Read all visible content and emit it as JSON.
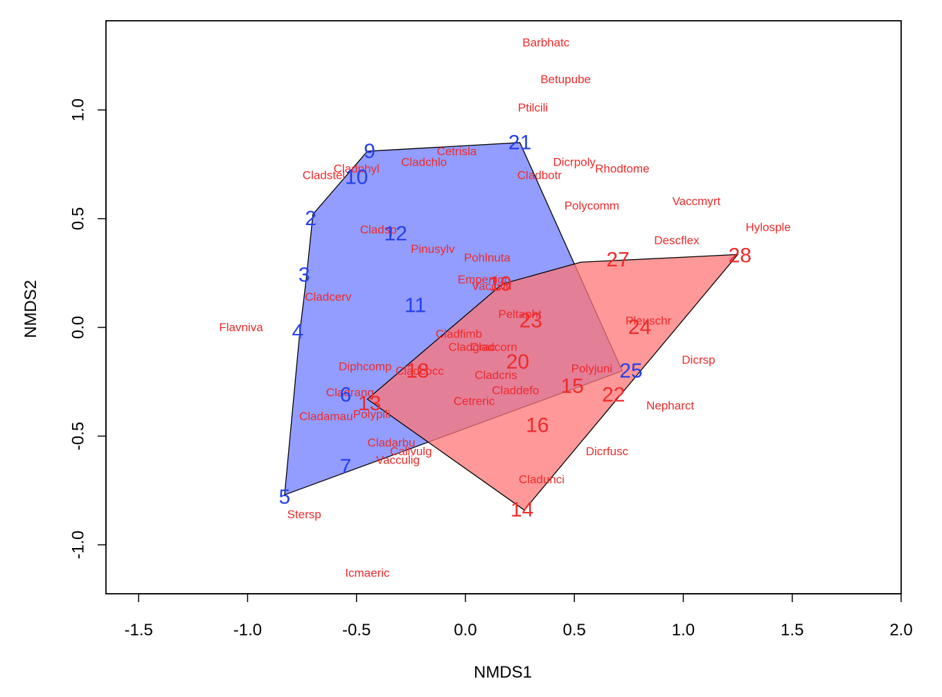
{
  "chart_data": {
    "type": "scatter",
    "title": "",
    "xlabel": "NMDS1",
    "ylabel": "NMDS2",
    "xlim": [
      -1.65,
      2.0
    ],
    "ylim": [
      -1.225,
      1.41
    ],
    "xticks": [
      -1.5,
      -1.0,
      -0.5,
      0.0,
      0.5,
      1.0,
      1.5,
      2.0
    ],
    "yticks": [
      -1.0,
      -0.5,
      0.0,
      0.5,
      1.0
    ],
    "xtick_labels": [
      "-1.5",
      "-1.0",
      "-0.5",
      "0.0",
      "0.5",
      "1.0",
      "1.5",
      "2.0"
    ],
    "ytick_labels": [
      "-1.0",
      "-0.5",
      "0.0",
      "0.5",
      "1.0"
    ],
    "grid": false,
    "colors": {
      "blue_text": "#2540e8",
      "red_text": "#ee2a2a",
      "blue_fill": "#6e7cff",
      "red_fill": "#ff7575",
      "hull_stroke": "#000000"
    },
    "hulls": [
      {
        "group": "blue",
        "points": [
          [
            -0.45,
            0.81
          ],
          [
            0.25,
            0.85
          ],
          [
            0.72,
            -0.2
          ],
          [
            -0.83,
            -0.77
          ],
          [
            -0.76,
            -0.02
          ],
          [
            -0.73,
            0.23
          ],
          [
            -0.7,
            0.52
          ]
        ]
      },
      {
        "group": "red",
        "points": [
          [
            -0.45,
            -0.33
          ],
          [
            0.17,
            0.2
          ],
          [
            0.53,
            0.3
          ],
          [
            1.25,
            0.335
          ],
          [
            0.27,
            -0.84
          ]
        ]
      }
    ],
    "sites": [
      {
        "label": "9",
        "group": "blue",
        "x": -0.44,
        "y": 0.81
      },
      {
        "label": "21",
        "group": "blue",
        "x": 0.25,
        "y": 0.85
      },
      {
        "label": "10",
        "group": "blue",
        "x": -0.5,
        "y": 0.69
      },
      {
        "label": "2",
        "group": "blue",
        "x": -0.71,
        "y": 0.5
      },
      {
        "label": "12",
        "group": "blue",
        "x": -0.32,
        "y": 0.43
      },
      {
        "label": "3",
        "group": "blue",
        "x": -0.74,
        "y": 0.24
      },
      {
        "label": "11",
        "group": "blue",
        "x": -0.23,
        "y": 0.1
      },
      {
        "label": "4",
        "group": "blue",
        "x": -0.77,
        "y": -0.02
      },
      {
        "label": "6",
        "group": "blue",
        "x": -0.55,
        "y": -0.31
      },
      {
        "label": "7",
        "group": "blue",
        "x": -0.55,
        "y": -0.64
      },
      {
        "label": "5",
        "group": "blue",
        "x": -0.83,
        "y": -0.78
      },
      {
        "label": "25",
        "group": "blue",
        "x": 0.76,
        "y": -0.2
      },
      {
        "label": "27",
        "group": "red",
        "x": 0.7,
        "y": 0.31
      },
      {
        "label": "28",
        "group": "red",
        "x": 1.26,
        "y": 0.33
      },
      {
        "label": "19",
        "group": "red",
        "x": 0.16,
        "y": 0.2
      },
      {
        "label": "23",
        "group": "red",
        "x": 0.3,
        "y": 0.03
      },
      {
        "label": "24",
        "group": "red",
        "x": 0.8,
        "y": 0.0
      },
      {
        "label": "20",
        "group": "red",
        "x": 0.24,
        "y": -0.16
      },
      {
        "label": "18",
        "group": "red",
        "x": -0.22,
        "y": -0.2
      },
      {
        "label": "15",
        "group": "red",
        "x": 0.49,
        "y": -0.27
      },
      {
        "label": "22",
        "group": "red",
        "x": 0.68,
        "y": -0.31
      },
      {
        "label": "13",
        "group": "red",
        "x": -0.44,
        "y": -0.35
      },
      {
        "label": "16",
        "group": "red",
        "x": 0.33,
        "y": -0.45
      },
      {
        "label": "14",
        "group": "red",
        "x": 0.26,
        "y": -0.84
      }
    ],
    "species": [
      {
        "label": "Barbhatc",
        "x": 0.37,
        "y": 1.31
      },
      {
        "label": "Betupube",
        "x": 0.46,
        "y": 1.14
      },
      {
        "label": "Ptilcili",
        "x": 0.31,
        "y": 1.01
      },
      {
        "label": "Cetrisla",
        "x": -0.04,
        "y": 0.81
      },
      {
        "label": "Cladchlo",
        "x": -0.19,
        "y": 0.76
      },
      {
        "label": "Cladphyl",
        "x": -0.5,
        "y": 0.73
      },
      {
        "label": "Cladstel",
        "x": -0.65,
        "y": 0.7
      },
      {
        "label": "Dicrpoly",
        "x": 0.5,
        "y": 0.76
      },
      {
        "label": "Rhodtome",
        "x": 0.72,
        "y": 0.73
      },
      {
        "label": "Cladbotr",
        "x": 0.34,
        "y": 0.7
      },
      {
        "label": "Vaccmyrt",
        "x": 1.06,
        "y": 0.58
      },
      {
        "label": "Polycomm",
        "x": 0.58,
        "y": 0.56
      },
      {
        "label": "Hylosple",
        "x": 1.39,
        "y": 0.46
      },
      {
        "label": "Descflex",
        "x": 0.97,
        "y": 0.4
      },
      {
        "label": "Cladsp",
        "x": -0.4,
        "y": 0.45
      },
      {
        "label": "Pinusylv",
        "x": -0.15,
        "y": 0.36
      },
      {
        "label": "Pohlnuta",
        "x": 0.1,
        "y": 0.32
      },
      {
        "label": "Empenigr",
        "x": 0.08,
        "y": 0.22
      },
      {
        "label": "Vaccviti",
        "x": 0.12,
        "y": 0.19
      },
      {
        "label": "Cladcerv",
        "x": -0.63,
        "y": 0.14
      },
      {
        "label": "Peltapht",
        "x": 0.25,
        "y": 0.06
      },
      {
        "label": "Pleuschr",
        "x": 0.84,
        "y": 0.03
      },
      {
        "label": "Flavniva",
        "x": -1.03,
        "y": 0.0
      },
      {
        "label": "Cladfimb",
        "x": -0.03,
        "y": -0.03
      },
      {
        "label": "Cladgrac",
        "x": 0.03,
        "y": -0.09
      },
      {
        "label": "Cladcorn",
        "x": 0.13,
        "y": -0.09
      },
      {
        "label": "Dicrsp",
        "x": 1.07,
        "y": -0.15
      },
      {
        "label": "Diphcomp",
        "x": -0.46,
        "y": -0.18
      },
      {
        "label": "Cladcocc",
        "x": -0.21,
        "y": -0.2
      },
      {
        "label": "Polyjuni",
        "x": 0.58,
        "y": -0.19
      },
      {
        "label": "Cladcris",
        "x": 0.14,
        "y": -0.22
      },
      {
        "label": "Claddefo",
        "x": 0.23,
        "y": -0.29
      },
      {
        "label": "Cladrang",
        "x": -0.53,
        "y": -0.3
      },
      {
        "label": "Cetreric",
        "x": 0.04,
        "y": -0.34
      },
      {
        "label": "Nepharct",
        "x": 0.94,
        "y": -0.36
      },
      {
        "label": "Cladamau",
        "x": -0.64,
        "y": -0.41
      },
      {
        "label": "Polypili",
        "x": -0.43,
        "y": -0.4
      },
      {
        "label": "Cladarbu",
        "x": -0.34,
        "y": -0.53
      },
      {
        "label": "Callvulg",
        "x": -0.25,
        "y": -0.57
      },
      {
        "label": "Dicrfusc",
        "x": 0.65,
        "y": -0.57
      },
      {
        "label": "Vacculig",
        "x": -0.31,
        "y": -0.61
      },
      {
        "label": "Cladunci",
        "x": 0.35,
        "y": -0.7
      },
      {
        "label": "Stersp",
        "x": -0.74,
        "y": -0.86
      },
      {
        "label": "Icmaeric",
        "x": -0.45,
        "y": -1.13
      }
    ]
  }
}
